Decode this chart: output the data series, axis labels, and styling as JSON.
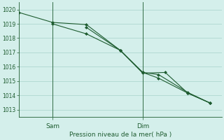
{
  "title": "Pression niveau de la mer( hPa )",
  "bg_color": "#d4efeb",
  "grid_color": "#aed8d0",
  "line_color": "#1e5c30",
  "tick_color": "#1e5c30",
  "ylim": [
    1012.5,
    1020.5
  ],
  "yticks": [
    1013,
    1014,
    1015,
    1016,
    1017,
    1018,
    1019,
    1020
  ],
  "xlim": [
    0,
    9
  ],
  "x_sam": 1.5,
  "x_dim": 5.5,
  "line1_x": [
    0.0,
    1.5,
    3.0,
    4.5,
    5.5,
    6.5,
    7.5,
    8.5
  ],
  "line1_y": [
    1019.8,
    1019.1,
    1018.95,
    1017.15,
    1015.55,
    1015.6,
    1014.15,
    1013.45
  ],
  "line2_x": [
    1.5,
    3.0,
    4.5,
    5.5,
    6.2,
    7.5,
    8.5
  ],
  "line2_y": [
    1019.0,
    1018.3,
    1017.15,
    1015.6,
    1015.45,
    1014.2,
    1013.45
  ],
  "line3_x": [
    3.0,
    4.5,
    5.5,
    6.2,
    7.5,
    8.5
  ],
  "line3_y": [
    1018.75,
    1017.15,
    1015.6,
    1015.2,
    1014.15,
    1013.45
  ],
  "sam_label": "Sam",
  "dim_label": "Dim",
  "marker": "D",
  "markersize": 2.0,
  "linewidth": 0.8
}
